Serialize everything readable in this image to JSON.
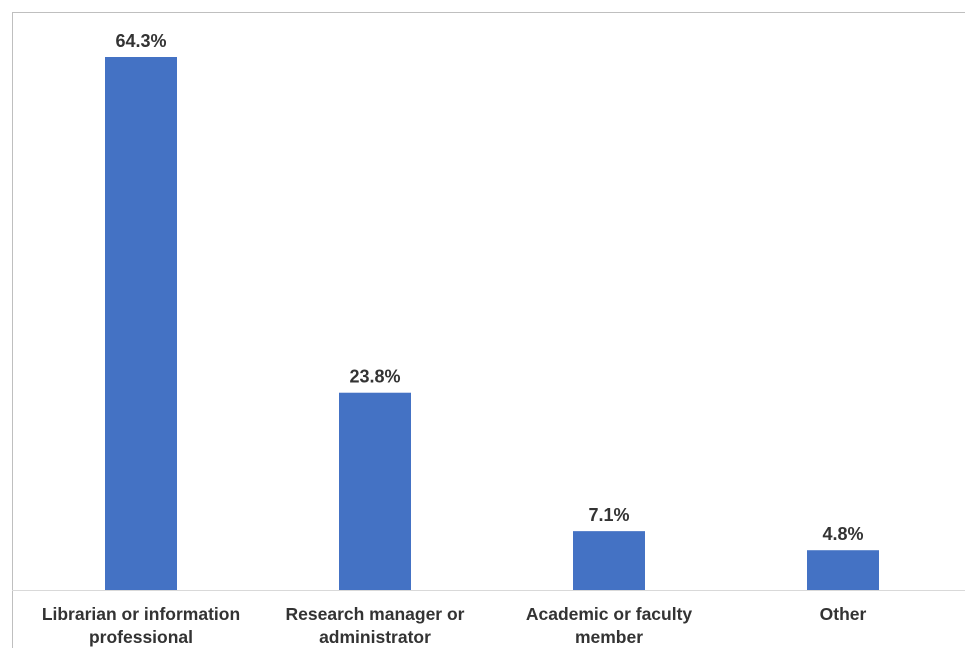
{
  "chart_data": {
    "type": "bar",
    "categories": [
      "Librarian or information professional",
      "Research manager or administrator",
      "Academic or faculty member",
      "Other"
    ],
    "values": [
      64.3,
      23.8,
      7.1,
      4.8
    ],
    "value_labels": [
      "64.3%",
      "23.8%",
      "7.1%",
      "4.8%"
    ],
    "color": "#4472c4"
  }
}
